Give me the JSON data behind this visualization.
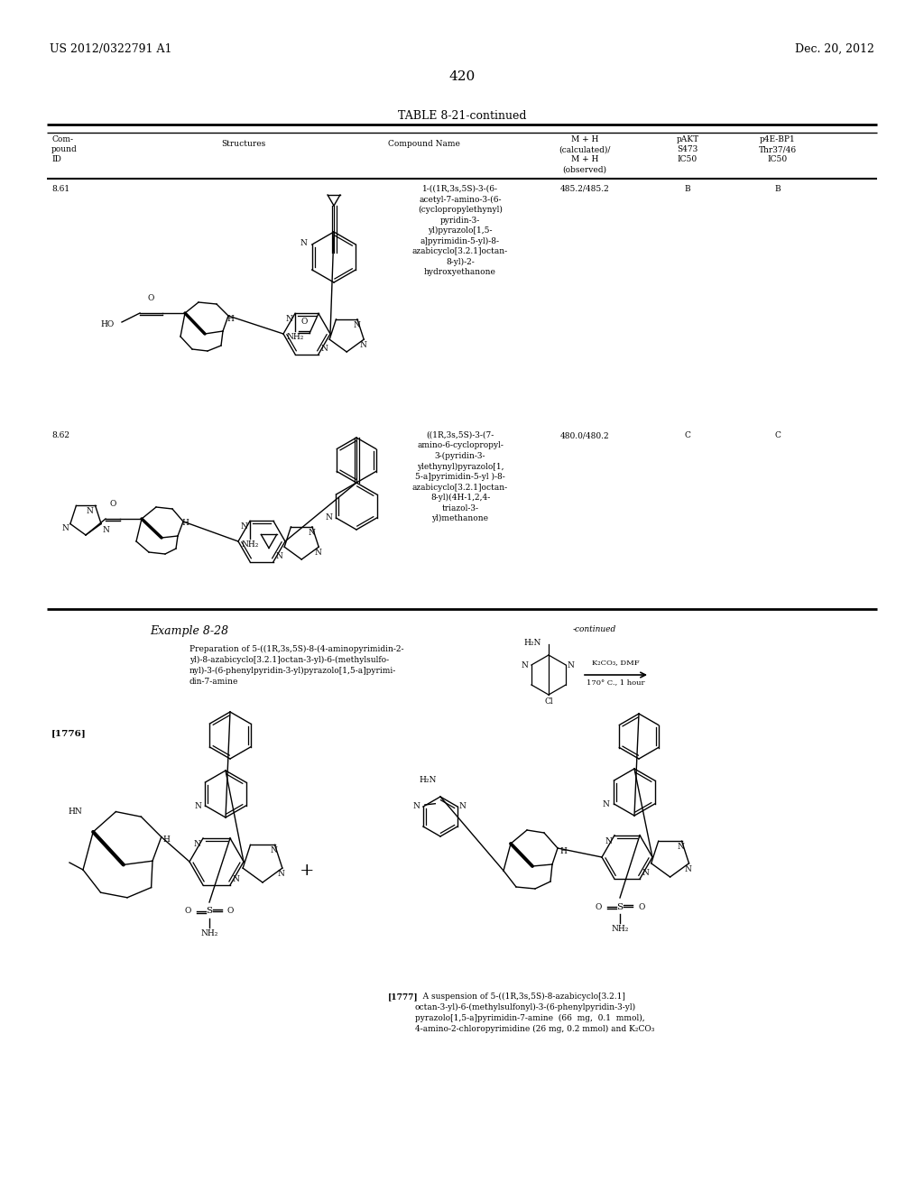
{
  "patent_number": "US 2012/0322791 A1",
  "date": "Dec. 20, 2012",
  "page_number": "420",
  "table_title": "TABLE 8-21-continued",
  "col1_header": "Com-\npound\nID",
  "col2_header": "Structures",
  "col3_header": "Compound Name",
  "col4_header": "M + H\n(calculated)/\nM + H\n(observed)",
  "col5_header": "pAKT\nS473\nIC50",
  "col6_header": "p4E-BP1\nThr37/46\nIC50",
  "row1_id": "8.61",
  "row1_mh": "485.2/485.2",
  "row1_pakt": "B",
  "row1_p4e": "B",
  "row1_name": "1-((1R,3s,5S)-3-(6-\nacetyl-7-amino-3-(6-\n(cyclopropylethynyl)\npyridin-3-\nyl)pyrazolo[1,5-\na]pyrimidin-5-yl)-8-\nazabicyclo[3.2.1]octan-\n8-yl)-2-\nhydroxyethanone",
  "row2_id": "8.62",
  "row2_mh": "480.0/480.2",
  "row2_pakt": "C",
  "row2_p4e": "C",
  "row2_name": "((1R,3s,5S)-3-(7-\namino-6-cyclopropyl-\n3-(pyridin-3-\nylethynyl)pyrazolo[1,\n5-a]pyrimidin-5-yl )-8-\nazabicyclo[3.2.1]octan-\n8-yl)(4H-1,2,4-\ntriazol-3-\nyl)methanone",
  "example_title": "Example 8-28",
  "example_prep": "Preparation of 5-((1R,3s,5S)-8-(4-aminopyrimidin-2-\nyl)-8-azabicyclo[3.2.1]octan-3-yl)-6-(methylsulfo-\nnyl)-3-(6-phenylpyridin-3-yl)pyrazolo[1,5-a]pyrimi-\ndin-7-amine",
  "ref_num": "[1776]",
  "continued_label": "-continued",
  "reaction_conditions": "K₂CO₃, DMF",
  "reaction_temp": "170° C., 1 hour",
  "ref_num2": "[1777]",
  "ref_text": "   A suspension of 5-((1R,3s,5S)-8-azabicyclo[3.2.1]\noctan-3-yl)-6-(methylsulfonyl)-3-(6-phenylpyridin-3-yl)\npyrazolo[1,5-a]pyrimidin-7-amine  (66  mg,  0.1  mmol),\n4-amino-2-chloropyrimidine (26 mg, 0.2 mmol) and K₂CO₃",
  "bg_color": "#ffffff",
  "text_color": "#000000"
}
